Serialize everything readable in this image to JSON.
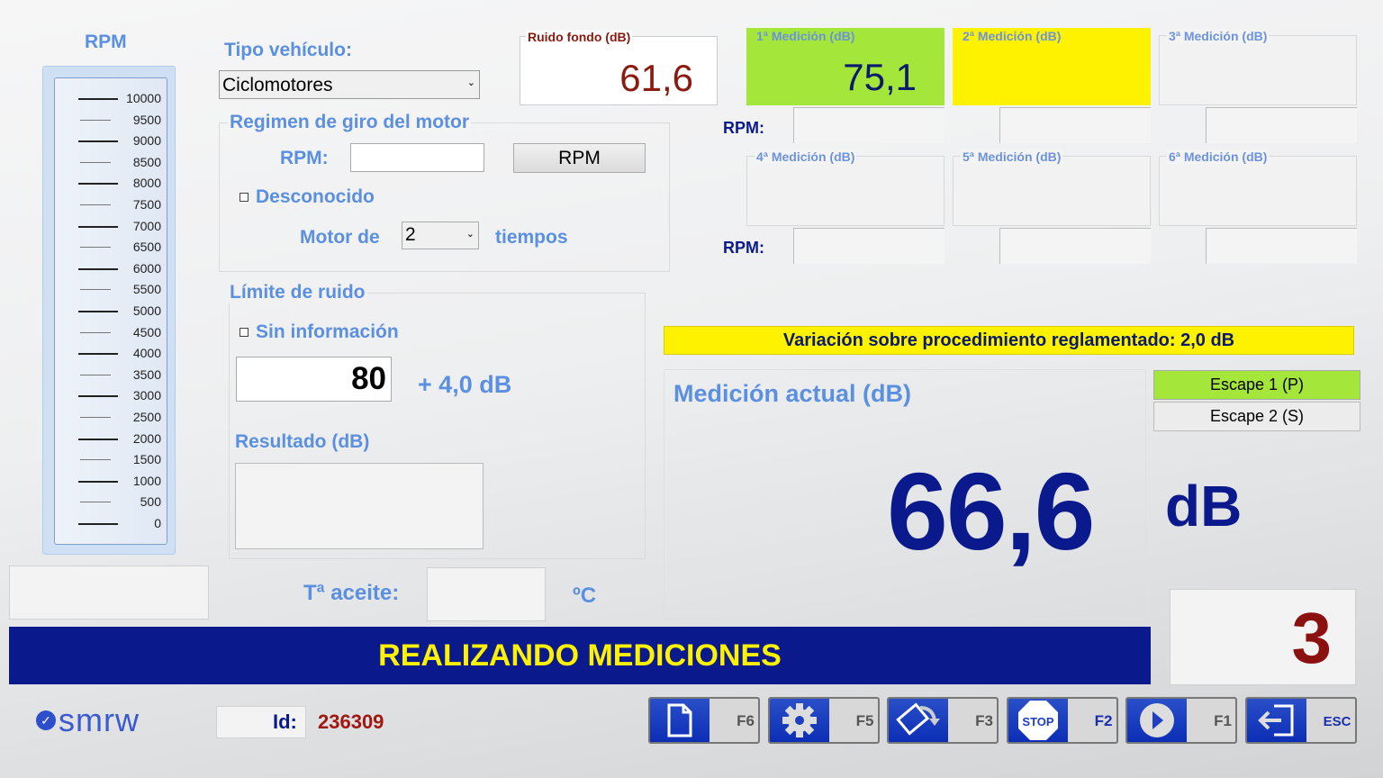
{
  "rpm_gauge": {
    "title": "RPM",
    "ticks": [
      "10000",
      "9500",
      "9000",
      "8500",
      "8000",
      "7500",
      "7000",
      "6500",
      "6000",
      "5500",
      "5000",
      "4500",
      "4000",
      "3500",
      "3000",
      "2500",
      "2000",
      "1500",
      "1000",
      "500",
      "0"
    ],
    "value": 0
  },
  "vehicle": {
    "label": "Tipo vehículo:",
    "selected": "Ciclomotores"
  },
  "engine": {
    "group_title": "Regimen de giro del motor",
    "rpm_label": "RPM:",
    "rpm_value": "",
    "rpm_button": "RPM",
    "unknown_label": "Desconocido",
    "motor_label": "Motor de",
    "motor_value": "2",
    "tiempos_label": "tiempos"
  },
  "limit": {
    "group_title": "Límite de ruido",
    "no_info_label": "Sin información",
    "value": "80",
    "tolerance": "+ 4,0 dB"
  },
  "result": {
    "label": "Resultado (dB)",
    "value": ""
  },
  "oil": {
    "label": "Tª aceite:",
    "value": "",
    "unit": "ºC"
  },
  "background_noise": {
    "label": "Ruido fondo (dB)",
    "value": "61,6"
  },
  "measurements": [
    {
      "label": "1ª Medición (dB)",
      "value": "75,1",
      "color": "#a4e63a"
    },
    {
      "label": "2ª Medición (dB)",
      "value": "",
      "color": "#fff200"
    },
    {
      "label": "3ª Medición (dB)",
      "value": ""
    },
    {
      "label": "4ª Medición (dB)",
      "value": ""
    },
    {
      "label": "5ª Medición (dB)",
      "value": ""
    },
    {
      "label": "6ª Medición (dB)",
      "value": ""
    }
  ],
  "rpm_row_label": "RPM:",
  "variation": "Variación sobre procedimiento reglamentado: 2,0 dB",
  "current": {
    "label": "Medición actual (dB)",
    "value": "66,6",
    "unit": "dB"
  },
  "exhaust": [
    {
      "label": "Escape 1 (P)",
      "active": true
    },
    {
      "label": "Escape 2 (S)",
      "active": false
    }
  ],
  "counter": "3",
  "status": "REALIZANDO MEDICIONES",
  "footer": {
    "logo": "smrw",
    "id_label": "Id:",
    "id_value": "236309"
  },
  "fkeys": [
    {
      "icon": "document-icon",
      "key": "F6"
    },
    {
      "icon": "gear-icon",
      "key": "F5"
    },
    {
      "icon": "rotate-device-icon",
      "key": "F3"
    },
    {
      "icon": "stop-icon",
      "key": "F2",
      "stop_text": "STOP"
    },
    {
      "icon": "play-icon",
      "key": "F1"
    },
    {
      "icon": "exit-icon",
      "key": "ESC"
    }
  ]
}
